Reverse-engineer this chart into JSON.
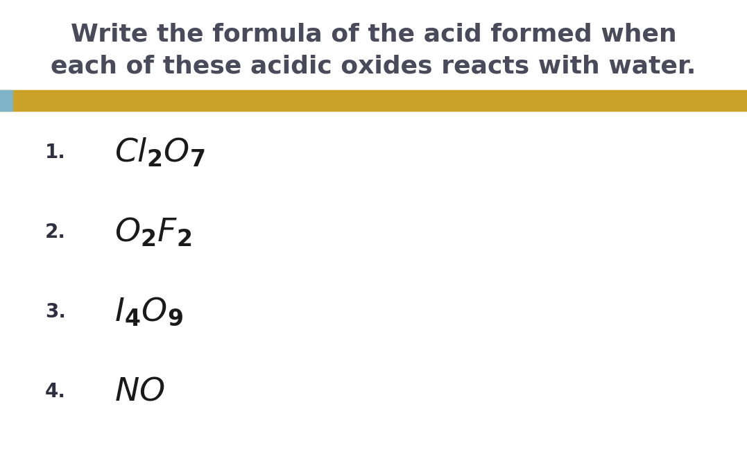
{
  "background_color": "#ffffff",
  "title_line1": "Write the formula of the acid formed when",
  "title_line2": "each of these acidic oxides reacts with water.",
  "title_color": "#4a4a5a",
  "title_fontsize": 26,
  "bar_color": "#C9A227",
  "bar_accent_color": "#7FB3C8",
  "items": [
    {
      "number": "1.",
      "formula": "$\\mathbf{\\mathit{Cl}}_{\\mathbf{2}}\\mathbf{\\mathit{O}}_{\\mathbf{7}}$"
    },
    {
      "number": "2.",
      "formula": "$\\mathbf{\\mathit{O}}_{\\mathbf{2}}\\mathbf{\\mathit{F}}_{\\mathbf{2}}$"
    },
    {
      "number": "3.",
      "formula": "$\\mathbf{\\mathit{I}}_{\\mathbf{4}}\\mathbf{\\mathit{O}}_{\\mathbf{9}}$"
    },
    {
      "number": "4.",
      "formula": "$\\mathbf{\\mathit{NO}}$"
    }
  ],
  "number_color": "#2F2F3F",
  "formula_color": "#1a1a1a",
  "number_fontsize": 20,
  "formula_fontsize": 34
}
